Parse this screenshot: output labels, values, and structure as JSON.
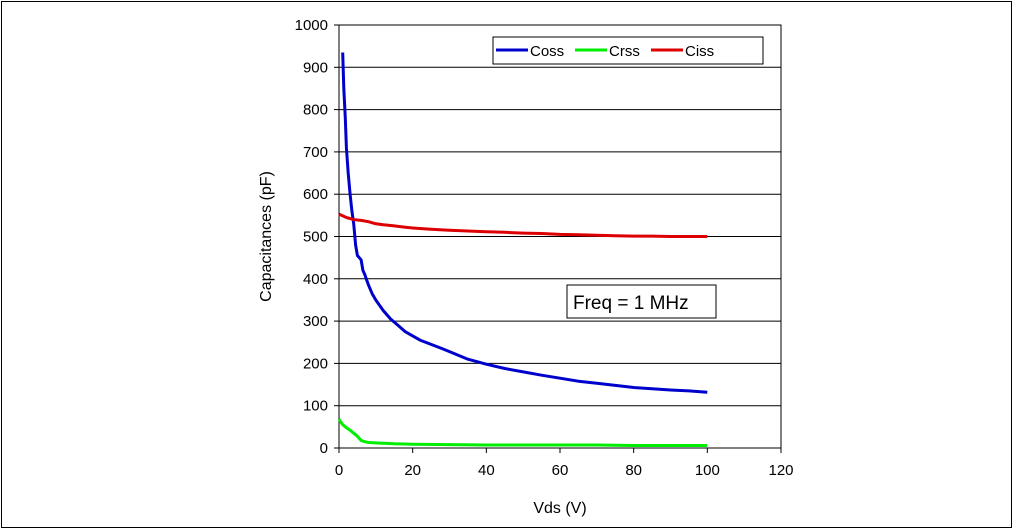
{
  "chart_data": {
    "type": "line",
    "xlabel": "Vds (V)",
    "ylabel": "Capacitances (pF)",
    "xlim": [
      0,
      120
    ],
    "ylim": [
      0,
      1000
    ],
    "x_ticks": [
      0,
      20,
      40,
      60,
      80,
      100,
      120
    ],
    "y_ticks": [
      0,
      100,
      200,
      300,
      400,
      500,
      600,
      700,
      800,
      900,
      1000
    ],
    "grid": "horizontal",
    "legend_position": "top-right",
    "annotation": "Freq = 1 MHz",
    "series": [
      {
        "name": "Coss",
        "color": "#0000cc",
        "x": [
          1,
          1.3,
          1.7,
          2,
          2.5,
          3,
          3.5,
          4,
          4.5,
          5,
          5.5,
          6,
          6.5,
          7,
          8,
          9,
          10,
          12,
          14,
          16,
          18,
          20,
          22,
          25,
          28,
          30,
          35,
          40,
          45,
          50,
          55,
          60,
          65,
          70,
          75,
          80,
          85,
          90,
          95,
          100
        ],
        "y": [
          935,
          850,
          780,
          710,
          650,
          600,
          560,
          530,
          480,
          455,
          450,
          445,
          420,
          410,
          385,
          365,
          350,
          325,
          305,
          290,
          275,
          265,
          255,
          245,
          235,
          228,
          210,
          198,
          188,
          180,
          172,
          165,
          158,
          153,
          148,
          143,
          140,
          137,
          135,
          132
        ]
      },
      {
        "name": "Crss",
        "color": "#00ee00",
        "x": [
          0,
          1,
          2,
          3,
          4,
          5,
          6,
          7,
          8,
          10,
          15,
          20,
          30,
          40,
          50,
          60,
          70,
          80,
          90,
          100
        ],
        "y": [
          68,
          55,
          48,
          42,
          35,
          28,
          18,
          15,
          13,
          12,
          10,
          9,
          8,
          7,
          7,
          7,
          7,
          6,
          6,
          6
        ]
      },
      {
        "name": "Ciss",
        "color": "#dd0000",
        "x": [
          0,
          2,
          4,
          6,
          8,
          10,
          12,
          15,
          18,
          20,
          25,
          30,
          35,
          40,
          45,
          50,
          55,
          60,
          65,
          70,
          75,
          80,
          85,
          90,
          95,
          100
        ],
        "y": [
          553,
          545,
          540,
          538,
          535,
          530,
          528,
          525,
          522,
          520,
          517,
          515,
          513,
          511,
          510,
          508,
          507,
          505,
          504,
          503,
          502,
          501,
          501,
          500,
          500,
          500
        ]
      }
    ]
  }
}
